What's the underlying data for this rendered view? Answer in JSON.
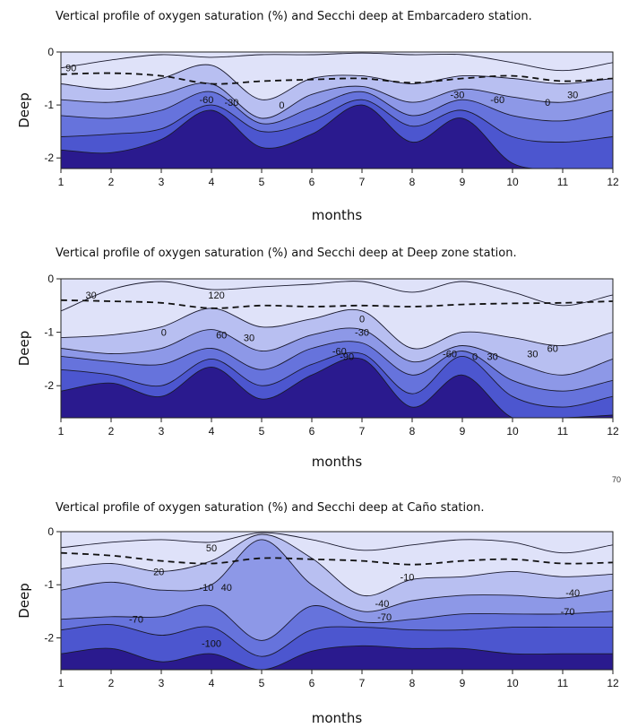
{
  "stray_label": "70",
  "colors": {
    "levels": [
      "#2a1a8e",
      "#3a38b8",
      "#4c56cf",
      "#6673dc",
      "#8d98e7",
      "#b8bff1",
      "#dfe2f9"
    ],
    "contour_line": "#1a1a2e",
    "secchi_line": "#111111"
  },
  "chart_data": [
    {
      "type": "contour",
      "title": "Vertical profile of oxygen saturation (%) and Secchi deep at Embarcadero station.",
      "xlabel": "months",
      "ylabel": "Deep",
      "xlim": [
        1,
        12
      ],
      "ylim": [
        -2.2,
        0
      ],
      "x_ticks": [
        "1",
        "2",
        "3",
        "4",
        "5",
        "6",
        "7",
        "8",
        "9",
        "10",
        "11",
        "12"
      ],
      "y_ticks": [
        {
          "value": 0,
          "label": "0"
        },
        {
          "value": -1,
          "label": "-1"
        },
        {
          "value": -2,
          "label": "-2"
        }
      ],
      "contours": [
        {
          "depths": [
            -1.85,
            -1.9,
            -1.65,
            -1.1,
            -1.8,
            -1.55,
            -1.0,
            -1.7,
            -1.25,
            -2.1,
            -2.2,
            -2.2
          ]
        },
        {
          "depths": [
            -1.6,
            -1.55,
            -1.45,
            -1.0,
            -1.5,
            -1.3,
            -0.9,
            -1.4,
            -1.1,
            -1.6,
            -1.7,
            -1.6
          ]
        },
        {
          "depths": [
            -1.2,
            -1.25,
            -1.1,
            -0.75,
            -1.35,
            -1.05,
            -0.75,
            -1.2,
            -0.9,
            -1.2,
            -1.3,
            -1.1
          ]
        },
        {
          "depths": [
            -0.9,
            -0.95,
            -0.8,
            -0.6,
            -1.25,
            -0.8,
            -0.65,
            -0.95,
            -0.7,
            -0.85,
            -0.95,
            -0.75
          ]
        },
        {
          "depths": [
            -0.6,
            -0.7,
            -0.5,
            -0.25,
            -0.9,
            -0.5,
            -0.45,
            -0.6,
            -0.45,
            -0.5,
            -0.6,
            -0.5
          ]
        },
        {
          "depths": [
            -0.3,
            -0.15,
            -0.05,
            -0.1,
            -0.05,
            -0.05,
            -0.02,
            -0.05,
            -0.05,
            -0.2,
            -0.35,
            -0.2
          ]
        }
      ],
      "secchi": {
        "x": [
          1,
          2,
          3,
          4,
          5,
          6,
          7,
          8,
          9,
          10,
          11,
          12
        ],
        "depth": [
          -0.42,
          -0.4,
          -0.45,
          -0.6,
          -0.55,
          -0.52,
          -0.5,
          -0.58,
          -0.5,
          -0.45,
          -0.55,
          -0.5
        ]
      },
      "contour_labels": [
        {
          "text": "90",
          "x": 1.2,
          "y": -0.3
        },
        {
          "text": "-60",
          "x": 3.9,
          "y": -0.9
        },
        {
          "text": "-30",
          "x": 4.4,
          "y": -0.95
        },
        {
          "text": "0",
          "x": 5.4,
          "y": -1.0
        },
        {
          "text": "-30",
          "x": 8.9,
          "y": -0.8
        },
        {
          "text": "-60",
          "x": 9.7,
          "y": -0.9
        },
        {
          "text": "0",
          "x": 10.7,
          "y": -0.95
        },
        {
          "text": "30",
          "x": 11.2,
          "y": -0.8
        }
      ]
    },
    {
      "type": "contour",
      "title": "Vertical profile of oxygen saturation (%) and Secchi deep at Deep zone  station.",
      "xlabel": "months",
      "ylabel": "Deep",
      "xlim": [
        1,
        12
      ],
      "ylim": [
        -2.6,
        0
      ],
      "x_ticks": [
        "1",
        "2",
        "3",
        "4",
        "5",
        "6",
        "7",
        "8",
        "9",
        "10",
        "11",
        "12"
      ],
      "y_ticks": [
        {
          "value": 0,
          "label": "0"
        },
        {
          "value": -1,
          "label": "-1"
        },
        {
          "value": -2,
          "label": "-2"
        }
      ],
      "contours": [
        {
          "depths": [
            -2.1,
            -1.95,
            -2.2,
            -1.65,
            -2.25,
            -1.8,
            -1.5,
            -2.4,
            -1.8,
            -2.6,
            -2.6,
            -2.55
          ]
        },
        {
          "depths": [
            -1.7,
            -1.8,
            -2.0,
            -1.5,
            -2.0,
            -1.6,
            -1.4,
            -2.15,
            -1.45,
            -2.2,
            -2.4,
            -2.2
          ]
        },
        {
          "depths": [
            -1.45,
            -1.55,
            -1.6,
            -1.3,
            -1.7,
            -1.3,
            -1.2,
            -1.8,
            -1.35,
            -1.9,
            -2.1,
            -1.9
          ]
        },
        {
          "depths": [
            -1.3,
            -1.4,
            -1.3,
            -0.95,
            -1.35,
            -1.05,
            -0.95,
            -1.55,
            -1.25,
            -1.55,
            -1.8,
            -1.5
          ]
        },
        {
          "depths": [
            -1.1,
            -1.05,
            -0.9,
            -0.55,
            -0.9,
            -0.75,
            -0.6,
            -1.3,
            -1.0,
            -1.1,
            -1.25,
            -1.0
          ]
        },
        {
          "depths": [
            -0.6,
            -0.2,
            -0.05,
            -0.2,
            -0.15,
            -0.1,
            -0.05,
            -0.25,
            -0.05,
            -0.25,
            -0.5,
            -0.3
          ]
        }
      ],
      "secchi": {
        "x": [
          1,
          2,
          3,
          4,
          5,
          6,
          7,
          8,
          9,
          10,
          11,
          12
        ],
        "depth": [
          -0.4,
          -0.42,
          -0.45,
          -0.55,
          -0.5,
          -0.52,
          -0.5,
          -0.52,
          -0.48,
          -0.46,
          -0.45,
          -0.42
        ]
      },
      "contour_labels": [
        {
          "text": "30",
          "x": 1.6,
          "y": -0.3
        },
        {
          "text": "120",
          "x": 4.1,
          "y": -0.3
        },
        {
          "text": "0",
          "x": 3.05,
          "y": -1.0
        },
        {
          "text": "60",
          "x": 4.2,
          "y": -1.05
        },
        {
          "text": "30",
          "x": 4.75,
          "y": -1.1
        },
        {
          "text": "0",
          "x": 7.0,
          "y": -0.75
        },
        {
          "text": "-30",
          "x": 7.0,
          "y": -1.0
        },
        {
          "text": "-60",
          "x": 6.55,
          "y": -1.35
        },
        {
          "text": "-90",
          "x": 6.7,
          "y": -1.45
        },
        {
          "text": "-60",
          "x": 8.75,
          "y": -1.4
        },
        {
          "text": "0",
          "x": 9.25,
          "y": -1.45
        },
        {
          "text": "30",
          "x": 9.6,
          "y": -1.45
        },
        {
          "text": "30",
          "x": 10.4,
          "y": -1.4
        },
        {
          "text": "60",
          "x": 10.8,
          "y": -1.3
        }
      ]
    },
    {
      "type": "contour",
      "title": "Vertical profile of oxygen saturation (%) and Secchi deep at Caño station.",
      "xlabel": "months",
      "ylabel": "Deep",
      "xlim": [
        1,
        12
      ],
      "ylim": [
        -2.6,
        0
      ],
      "x_ticks": [
        "1",
        "2",
        "3",
        "4",
        "5",
        "6",
        "7",
        "8",
        "9",
        "10",
        "11",
        "12"
      ],
      "y_ticks": [
        {
          "value": 0,
          "label": "0"
        },
        {
          "value": -1,
          "label": "-1"
        },
        {
          "value": -2,
          "label": "-2"
        }
      ],
      "contours": [
        {
          "depths": [
            -2.3,
            -2.2,
            -2.45,
            -2.3,
            -2.6,
            -2.25,
            -2.15,
            -2.2,
            -2.2,
            -2.3,
            -2.3,
            -2.3
          ]
        },
        {
          "depths": [
            -1.85,
            -1.75,
            -1.95,
            -1.8,
            -2.35,
            -1.85,
            -1.8,
            -1.85,
            -1.85,
            -1.8,
            -1.8,
            -1.8
          ]
        },
        {
          "depths": [
            -1.65,
            -1.6,
            -1.6,
            -1.4,
            -2.05,
            -1.4,
            -1.7,
            -1.65,
            -1.55,
            -1.55,
            -1.55,
            -1.5
          ]
        },
        {
          "depths": [
            -1.1,
            -0.95,
            -1.1,
            -1.0,
            -0.15,
            -1.0,
            -1.5,
            -1.3,
            -1.2,
            -1.2,
            -1.25,
            -1.1
          ]
        },
        {
          "depths": [
            -0.7,
            -0.6,
            -0.75,
            -0.55,
            -0.05,
            -0.5,
            -1.2,
            -0.9,
            -0.85,
            -0.75,
            -0.85,
            -0.8
          ]
        },
        {
          "depths": [
            -0.3,
            -0.2,
            -0.15,
            -0.2,
            -0.02,
            -0.15,
            -0.35,
            -0.25,
            -0.15,
            -0.2,
            -0.4,
            -0.25
          ]
        }
      ],
      "secchi": {
        "x": [
          1,
          2,
          3,
          4,
          5,
          6,
          7,
          8,
          9,
          10,
          11,
          12
        ],
        "depth": [
          -0.4,
          -0.45,
          -0.55,
          -0.6,
          -0.5,
          -0.52,
          -0.55,
          -0.62,
          -0.55,
          -0.52,
          -0.6,
          -0.58
        ]
      },
      "contour_labels": [
        {
          "text": "50",
          "x": 4.0,
          "y": -0.3
        },
        {
          "text": "20",
          "x": 2.95,
          "y": -0.75
        },
        {
          "text": "-10",
          "x": 3.9,
          "y": -1.05
        },
        {
          "text": "40",
          "x": 4.3,
          "y": -1.05
        },
        {
          "text": "-70",
          "x": 2.5,
          "y": -1.65
        },
        {
          "text": "-100",
          "x": 4.0,
          "y": -2.1
        },
        {
          "text": "-10",
          "x": 7.9,
          "y": -0.85
        },
        {
          "text": "-40",
          "x": 7.4,
          "y": -1.35
        },
        {
          "text": "-70",
          "x": 7.45,
          "y": -1.6
        },
        {
          "text": "-40",
          "x": 11.2,
          "y": -1.15
        },
        {
          "text": "-70",
          "x": 11.1,
          "y": -1.5
        }
      ]
    }
  ]
}
